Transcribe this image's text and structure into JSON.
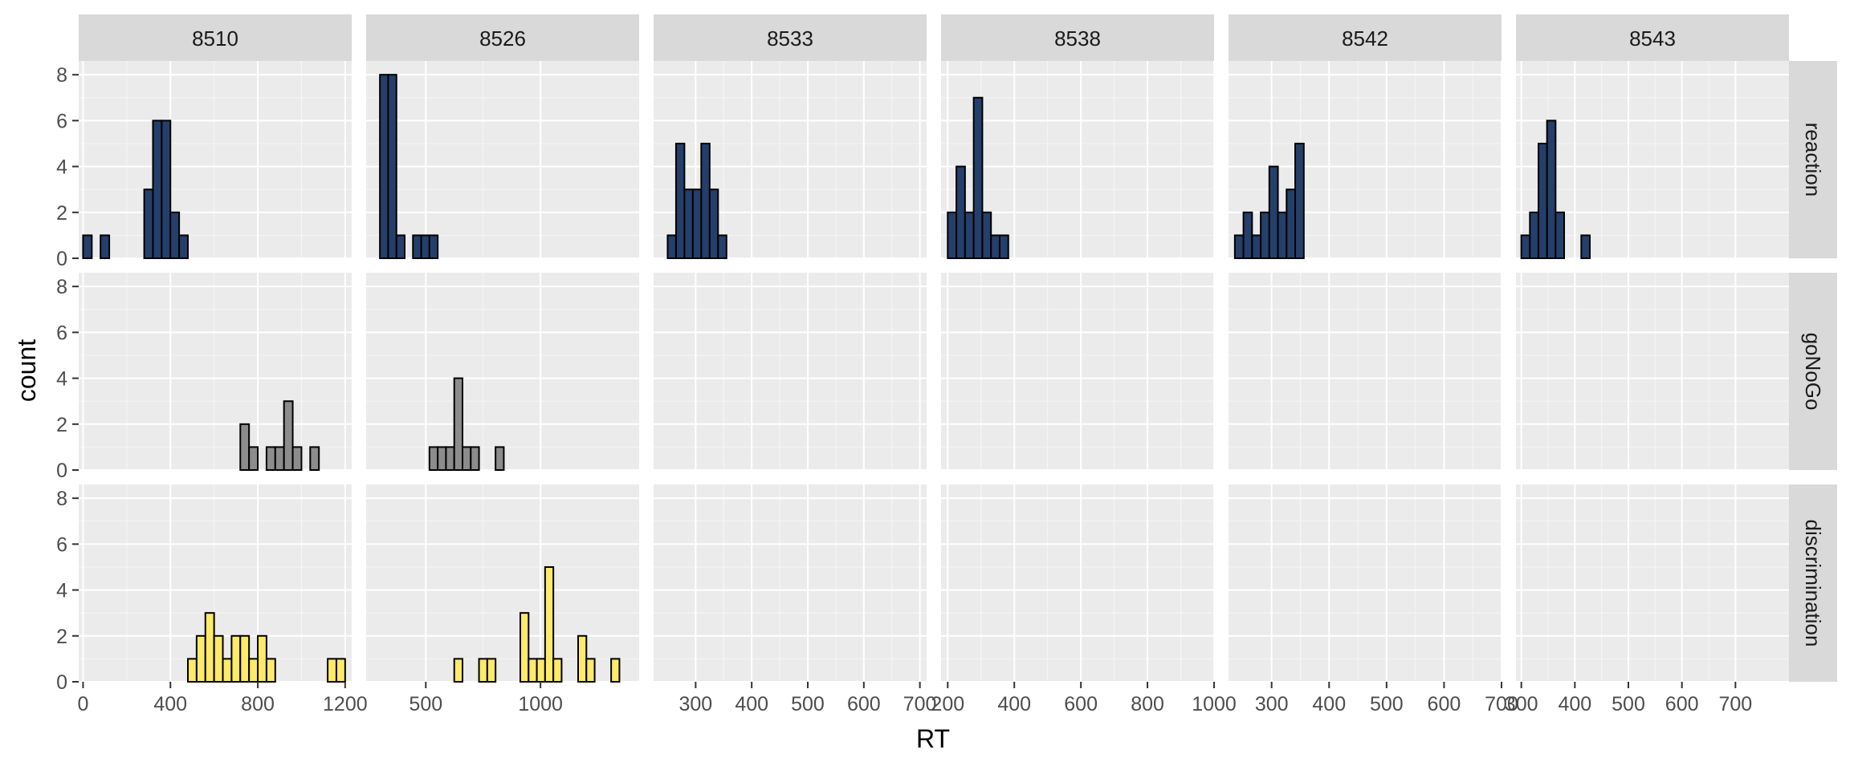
{
  "chart_data": {
    "type": "bar",
    "chart_kind": "faceted histogram",
    "xlabel": "RT",
    "ylabel": "count",
    "ylim": [
      0,
      8.6
    ],
    "y_ticks": [
      0,
      2,
      4,
      6,
      8
    ],
    "bins_per_panel": 30,
    "grid": true,
    "legend": "none",
    "colors": {
      "reaction": "#253f6b",
      "goNoGo": "#8c8c8c",
      "discrimination": "#fde96a",
      "panel_background": "#ebebeb",
      "strip_background": "#d9d9d9",
      "bar_outline": "#000000"
    },
    "row_facets": [
      "reaction",
      "goNoGo",
      "discrimination"
    ],
    "col_facets": [
      {
        "label": "8510",
        "x_range": [
          -20,
          1230
        ],
        "x_ticks": [
          {
            "value": 0,
            "label": "0"
          },
          {
            "value": 400,
            "label": "400"
          },
          {
            "value": 800,
            "label": "800"
          },
          {
            "value": 1200,
            "label": "1200"
          }
        ],
        "reaction": {
          "x_min": 0,
          "x_max": 1200,
          "counts": [
            1,
            0,
            1,
            0,
            0,
            0,
            0,
            3,
            6,
            6,
            2,
            1,
            0,
            0,
            0,
            0,
            0,
            0,
            0,
            0,
            0,
            0,
            0,
            0,
            0,
            0,
            0,
            0,
            0,
            0
          ]
        },
        "goNoGo": {
          "x_min": 0,
          "x_max": 1200,
          "counts": [
            0,
            0,
            0,
            0,
            0,
            0,
            0,
            0,
            0,
            0,
            0,
            0,
            0,
            0,
            0,
            0,
            0,
            0,
            2,
            1,
            0,
            1,
            1,
            3,
            1,
            0,
            1,
            0,
            0,
            0
          ]
        },
        "discrimination": {
          "x_min": 0,
          "x_max": 1200,
          "counts": [
            0,
            0,
            0,
            0,
            0,
            0,
            0,
            0,
            0,
            0,
            0,
            0,
            1,
            2,
            3,
            2,
            1,
            2,
            2,
            1,
            2,
            1,
            0,
            0,
            0,
            0,
            0,
            0,
            1,
            1
          ]
        }
      },
      {
        "label": "8526",
        "x_range": [
          240,
          1430
        ],
        "x_ticks": [
          {
            "value": 500,
            "label": "500"
          },
          {
            "value": 1000,
            "label": "1000"
          }
        ],
        "reaction": {
          "x_min": 300,
          "x_max": 1380,
          "counts": [
            8,
            8,
            1,
            0,
            1,
            1,
            1,
            0,
            0,
            0,
            0,
            0,
            0,
            0,
            0,
            0,
            0,
            0,
            0,
            0,
            0,
            0,
            0,
            0,
            0,
            0,
            0,
            0,
            0,
            0
          ]
        },
        "goNoGo": {
          "x_min": 300,
          "x_max": 1380,
          "counts": [
            0,
            0,
            0,
            0,
            0,
            0,
            1,
            1,
            1,
            4,
            1,
            1,
            0,
            0,
            1,
            0,
            0,
            0,
            0,
            0,
            0,
            0,
            0,
            0,
            0,
            0,
            0,
            0,
            0,
            0
          ]
        },
        "discrimination": {
          "x_min": 300,
          "x_max": 1380,
          "counts": [
            0,
            0,
            0,
            0,
            0,
            0,
            0,
            0,
            0,
            1,
            0,
            0,
            1,
            1,
            0,
            0,
            0,
            3,
            1,
            1,
            5,
            1,
            0,
            0,
            2,
            1,
            0,
            0,
            1,
            0
          ]
        }
      },
      {
        "label": "8533",
        "x_range": [
          225,
          712
        ],
        "x_ticks": [
          {
            "value": 300,
            "label": "300"
          },
          {
            "value": 400,
            "label": "400"
          },
          {
            "value": 500,
            "label": "500"
          },
          {
            "value": 600,
            "label": "600"
          },
          {
            "value": 700,
            "label": "700"
          }
        ],
        "reaction": {
          "x_min": 250,
          "x_max": 700,
          "counts": [
            1,
            5,
            3,
            3,
            5,
            3,
            1,
            0,
            0,
            0,
            0,
            0,
            0,
            0,
            0,
            0,
            0,
            0,
            0,
            0,
            0,
            0,
            0,
            0,
            0,
            0,
            0,
            0,
            0,
            0
          ]
        },
        "goNoGo": {
          "x_min": 250,
          "x_max": 700,
          "counts": [
            0,
            0,
            0,
            0,
            0,
            0,
            0,
            0,
            0,
            0,
            0,
            0,
            0,
            0,
            0,
            0,
            0,
            0,
            0,
            0,
            0,
            0,
            0,
            0,
            0,
            0,
            0,
            0,
            0,
            0
          ]
        },
        "discrimination": {
          "x_min": 250,
          "x_max": 700,
          "counts": [
            0,
            0,
            0,
            0,
            0,
            0,
            0,
            0,
            0,
            0,
            0,
            0,
            0,
            0,
            0,
            0,
            0,
            0,
            0,
            0,
            0,
            0,
            0,
            0,
            0,
            0,
            0,
            0,
            0,
            0
          ]
        }
      },
      {
        "label": "8538",
        "x_range": [
          180,
          1000
        ],
        "x_ticks": [
          {
            "value": 200,
            "label": "200"
          },
          {
            "value": 400,
            "label": "400"
          },
          {
            "value": 600,
            "label": "600"
          },
          {
            "value": 800,
            "label": "800"
          },
          {
            "value": 1000,
            "label": "1000"
          }
        ],
        "reaction": {
          "x_min": 200,
          "x_max": 980,
          "counts": [
            2,
            4,
            2,
            7,
            2,
            1,
            1,
            0,
            0,
            0,
            0,
            0,
            0,
            0,
            0,
            0,
            0,
            0,
            0,
            0,
            0,
            0,
            0,
            0,
            0,
            0,
            0,
            0,
            0,
            0
          ]
        },
        "goNoGo": {
          "x_min": 200,
          "x_max": 980,
          "counts": [
            0,
            0,
            0,
            0,
            0,
            0,
            0,
            0,
            0,
            0,
            0,
            0,
            0,
            0,
            0,
            0,
            0,
            0,
            0,
            0,
            0,
            0,
            0,
            0,
            0,
            0,
            0,
            0,
            0,
            0
          ]
        },
        "discrimination": {
          "x_min": 200,
          "x_max": 980,
          "counts": [
            0,
            0,
            0,
            0,
            0,
            0,
            0,
            0,
            0,
            0,
            0,
            0,
            0,
            0,
            0,
            0,
            0,
            0,
            0,
            0,
            0,
            0,
            0,
            0,
            0,
            0,
            0,
            0,
            0,
            0
          ]
        }
      },
      {
        "label": "8542",
        "x_range": [
          225,
          700
        ],
        "x_ticks": [
          {
            "value": 300,
            "label": "300"
          },
          {
            "value": 400,
            "label": "400"
          },
          {
            "value": 500,
            "label": "500"
          },
          {
            "value": 600,
            "label": "600"
          },
          {
            "value": 700,
            "label": "700"
          }
        ],
        "reaction": {
          "x_min": 236,
          "x_max": 686,
          "counts": [
            1,
            2,
            1,
            2,
            4,
            2,
            3,
            5,
            0,
            0,
            0,
            0,
            0,
            0,
            0,
            0,
            0,
            0,
            0,
            0,
            0,
            0,
            0,
            0,
            0,
            0,
            0,
            0,
            0,
            0
          ]
        },
        "goNoGo": {
          "x_min": 236,
          "x_max": 686,
          "counts": [
            0,
            0,
            0,
            0,
            0,
            0,
            0,
            0,
            0,
            0,
            0,
            0,
            0,
            0,
            0,
            0,
            0,
            0,
            0,
            0,
            0,
            0,
            0,
            0,
            0,
            0,
            0,
            0,
            0,
            0
          ]
        },
        "discrimination": {
          "x_min": 236,
          "x_max": 686,
          "counts": [
            0,
            0,
            0,
            0,
            0,
            0,
            0,
            0,
            0,
            0,
            0,
            0,
            0,
            0,
            0,
            0,
            0,
            0,
            0,
            0,
            0,
            0,
            0,
            0,
            0,
            0,
            0,
            0,
            0,
            0
          ]
        }
      },
      {
        "label": "8543",
        "x_range": [
          290,
          800
        ],
        "x_ticks": [
          {
            "value": 300,
            "label": "300"
          },
          {
            "value": 400,
            "label": "400"
          },
          {
            "value": 500,
            "label": "500"
          },
          {
            "value": 600,
            "label": "600"
          },
          {
            "value": 700,
            "label": "700"
          }
        ],
        "reaction": {
          "x_min": 300,
          "x_max": 780,
          "counts": [
            1,
            2,
            5,
            6,
            2,
            0,
            0,
            1,
            0,
            0,
            0,
            0,
            0,
            0,
            0,
            0,
            0,
            0,
            0,
            0,
            0,
            0,
            0,
            0,
            0,
            0,
            0,
            0,
            0,
            0
          ]
        },
        "goNoGo": {
          "x_min": 300,
          "x_max": 780,
          "counts": [
            0,
            0,
            0,
            0,
            0,
            0,
            0,
            0,
            0,
            0,
            0,
            0,
            0,
            0,
            0,
            0,
            0,
            0,
            0,
            0,
            0,
            0,
            0,
            0,
            0,
            0,
            0,
            0,
            0,
            0
          ]
        },
        "discrimination": {
          "x_min": 300,
          "x_max": 780,
          "counts": [
            0,
            0,
            0,
            0,
            0,
            0,
            0,
            0,
            0,
            0,
            0,
            0,
            0,
            0,
            0,
            0,
            0,
            0,
            0,
            0,
            0,
            0,
            0,
            0,
            0,
            0,
            0,
            0,
            0,
            0
          ]
        }
      }
    ]
  }
}
